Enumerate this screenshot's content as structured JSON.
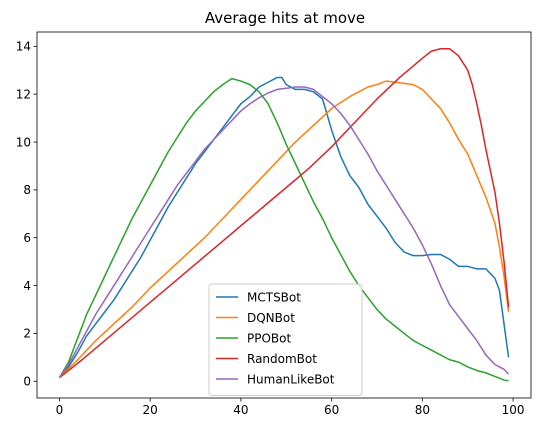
{
  "chart_data": {
    "type": "line",
    "title": "Average hits at move",
    "xlabel": "",
    "ylabel": "",
    "xlim": [
      -4.95,
      103.95
    ],
    "ylim": [
      -0.7,
      14.6
    ],
    "x_ticks": [
      0,
      20,
      40,
      60,
      80,
      100
    ],
    "y_ticks": [
      0,
      2,
      4,
      6,
      8,
      10,
      12,
      14
    ],
    "grid": false,
    "legend_position": "lower-center",
    "series": [
      {
        "name": "MCTSBot",
        "color": "#1f77b4",
        "points": [
          [
            0,
            0.15
          ],
          [
            2,
            0.6
          ],
          [
            4,
            1.2
          ],
          [
            6,
            1.9
          ],
          [
            8,
            2.4
          ],
          [
            10,
            2.9
          ],
          [
            12,
            3.4
          ],
          [
            14,
            4.0
          ],
          [
            16,
            4.6
          ],
          [
            18,
            5.2
          ],
          [
            20,
            5.9
          ],
          [
            22,
            6.6
          ],
          [
            24,
            7.3
          ],
          [
            26,
            7.9
          ],
          [
            28,
            8.5
          ],
          [
            30,
            9.1
          ],
          [
            32,
            9.6
          ],
          [
            34,
            10.1
          ],
          [
            36,
            10.6
          ],
          [
            38,
            11.1
          ],
          [
            40,
            11.6
          ],
          [
            42,
            11.9
          ],
          [
            44,
            12.3
          ],
          [
            46,
            12.5
          ],
          [
            48,
            12.7
          ],
          [
            49,
            12.7
          ],
          [
            50,
            12.4
          ],
          [
            52,
            12.2
          ],
          [
            54,
            12.2
          ],
          [
            56,
            12.1
          ],
          [
            58,
            11.8
          ],
          [
            60,
            10.5
          ],
          [
            62,
            9.4
          ],
          [
            64,
            8.6
          ],
          [
            66,
            8.1
          ],
          [
            68,
            7.4
          ],
          [
            70,
            6.9
          ],
          [
            72,
            6.4
          ],
          [
            74,
            5.8
          ],
          [
            76,
            5.4
          ],
          [
            78,
            5.25
          ],
          [
            80,
            5.25
          ],
          [
            82,
            5.3
          ],
          [
            84,
            5.3
          ],
          [
            86,
            5.1
          ],
          [
            88,
            4.8
          ],
          [
            90,
            4.8
          ],
          [
            92,
            4.7
          ],
          [
            94,
            4.7
          ],
          [
            96,
            4.3
          ],
          [
            97,
            3.8
          ],
          [
            98,
            2.4
          ],
          [
            99,
            1.0
          ]
        ]
      },
      {
        "name": "DQNBot",
        "color": "#ff7f0e",
        "points": [
          [
            0,
            0.15
          ],
          [
            4,
            0.9
          ],
          [
            8,
            1.7
          ],
          [
            12,
            2.4
          ],
          [
            16,
            3.1
          ],
          [
            20,
            3.9
          ],
          [
            24,
            4.6
          ],
          [
            28,
            5.3
          ],
          [
            32,
            6.0
          ],
          [
            36,
            6.8
          ],
          [
            40,
            7.6
          ],
          [
            44,
            8.4
          ],
          [
            48,
            9.2
          ],
          [
            52,
            10.0
          ],
          [
            56,
            10.7
          ],
          [
            60,
            11.4
          ],
          [
            64,
            11.9
          ],
          [
            68,
            12.3
          ],
          [
            70,
            12.4
          ],
          [
            72,
            12.55
          ],
          [
            74,
            12.5
          ],
          [
            76,
            12.45
          ],
          [
            78,
            12.4
          ],
          [
            80,
            12.2
          ],
          [
            82,
            11.8
          ],
          [
            84,
            11.4
          ],
          [
            86,
            10.8
          ],
          [
            88,
            10.1
          ],
          [
            90,
            9.5
          ],
          [
            92,
            8.6
          ],
          [
            94,
            7.7
          ],
          [
            96,
            6.6
          ],
          [
            97,
            5.6
          ],
          [
            98,
            4.4
          ],
          [
            99,
            2.9
          ]
        ]
      },
      {
        "name": "PPOBot",
        "color": "#2ca02c",
        "points": [
          [
            0,
            0.15
          ],
          [
            2,
            0.8
          ],
          [
            4,
            1.8
          ],
          [
            6,
            2.8
          ],
          [
            8,
            3.6
          ],
          [
            10,
            4.4
          ],
          [
            12,
            5.2
          ],
          [
            14,
            6.0
          ],
          [
            16,
            6.8
          ],
          [
            18,
            7.5
          ],
          [
            20,
            8.2
          ],
          [
            22,
            8.9
          ],
          [
            24,
            9.6
          ],
          [
            26,
            10.2
          ],
          [
            28,
            10.8
          ],
          [
            30,
            11.3
          ],
          [
            32,
            11.7
          ],
          [
            34,
            12.1
          ],
          [
            36,
            12.4
          ],
          [
            38,
            12.65
          ],
          [
            40,
            12.55
          ],
          [
            42,
            12.4
          ],
          [
            44,
            12.1
          ],
          [
            46,
            11.6
          ],
          [
            48,
            10.8
          ],
          [
            50,
            9.9
          ],
          [
            52,
            9.1
          ],
          [
            54,
            8.3
          ],
          [
            56,
            7.5
          ],
          [
            58,
            6.8
          ],
          [
            60,
            6.0
          ],
          [
            62,
            5.3
          ],
          [
            64,
            4.6
          ],
          [
            66,
            4.0
          ],
          [
            68,
            3.5
          ],
          [
            70,
            3.0
          ],
          [
            72,
            2.6
          ],
          [
            74,
            2.3
          ],
          [
            76,
            2.0
          ],
          [
            78,
            1.7
          ],
          [
            80,
            1.5
          ],
          [
            82,
            1.3
          ],
          [
            84,
            1.1
          ],
          [
            86,
            0.9
          ],
          [
            88,
            0.8
          ],
          [
            90,
            0.6
          ],
          [
            92,
            0.45
          ],
          [
            94,
            0.35
          ],
          [
            96,
            0.2
          ],
          [
            98,
            0.05
          ],
          [
            99,
            0.02
          ]
        ]
      },
      {
        "name": "RandomBot",
        "color": "#d62728",
        "points": [
          [
            0,
            0.15
          ],
          [
            5,
            0.9
          ],
          [
            10,
            1.7
          ],
          [
            15,
            2.5
          ],
          [
            20,
            3.3
          ],
          [
            25,
            4.1
          ],
          [
            30,
            4.9
          ],
          [
            35,
            5.7
          ],
          [
            40,
            6.5
          ],
          [
            45,
            7.3
          ],
          [
            50,
            8.1
          ],
          [
            55,
            8.9
          ],
          [
            60,
            9.8
          ],
          [
            65,
            10.8
          ],
          [
            70,
            11.8
          ],
          [
            75,
            12.7
          ],
          [
            80,
            13.5
          ],
          [
            82,
            13.8
          ],
          [
            84,
            13.9
          ],
          [
            86,
            13.9
          ],
          [
            88,
            13.6
          ],
          [
            90,
            13.0
          ],
          [
            91,
            12.4
          ],
          [
            92,
            11.6
          ],
          [
            93,
            10.7
          ],
          [
            94,
            9.7
          ],
          [
            95,
            8.8
          ],
          [
            96,
            7.9
          ],
          [
            97,
            6.6
          ],
          [
            98,
            5.0
          ],
          [
            99,
            3.1
          ]
        ]
      },
      {
        "name": "HumanLikeBot",
        "color": "#9467bd",
        "points": [
          [
            0,
            0.15
          ],
          [
            2,
            0.7
          ],
          [
            4,
            1.4
          ],
          [
            6,
            2.1
          ],
          [
            8,
            2.8
          ],
          [
            10,
            3.4
          ],
          [
            12,
            4.0
          ],
          [
            14,
            4.6
          ],
          [
            16,
            5.2
          ],
          [
            18,
            5.8
          ],
          [
            20,
            6.4
          ],
          [
            22,
            7.0
          ],
          [
            24,
            7.6
          ],
          [
            26,
            8.2
          ],
          [
            28,
            8.7
          ],
          [
            30,
            9.2
          ],
          [
            32,
            9.7
          ],
          [
            34,
            10.1
          ],
          [
            36,
            10.5
          ],
          [
            38,
            10.9
          ],
          [
            40,
            11.3
          ],
          [
            42,
            11.6
          ],
          [
            44,
            11.85
          ],
          [
            46,
            12.05
          ],
          [
            48,
            12.2
          ],
          [
            50,
            12.25
          ],
          [
            52,
            12.3
          ],
          [
            54,
            12.3
          ],
          [
            56,
            12.2
          ],
          [
            58,
            11.9
          ],
          [
            60,
            11.6
          ],
          [
            62,
            11.2
          ],
          [
            64,
            10.7
          ],
          [
            66,
            10.1
          ],
          [
            68,
            9.5
          ],
          [
            70,
            8.8
          ],
          [
            72,
            8.2
          ],
          [
            74,
            7.6
          ],
          [
            76,
            7.0
          ],
          [
            78,
            6.4
          ],
          [
            80,
            5.7
          ],
          [
            82,
            4.9
          ],
          [
            84,
            4.0
          ],
          [
            86,
            3.2
          ],
          [
            88,
            2.7
          ],
          [
            90,
            2.2
          ],
          [
            92,
            1.7
          ],
          [
            94,
            1.1
          ],
          [
            96,
            0.7
          ],
          [
            98,
            0.5
          ],
          [
            99,
            0.3
          ]
        ]
      }
    ]
  }
}
